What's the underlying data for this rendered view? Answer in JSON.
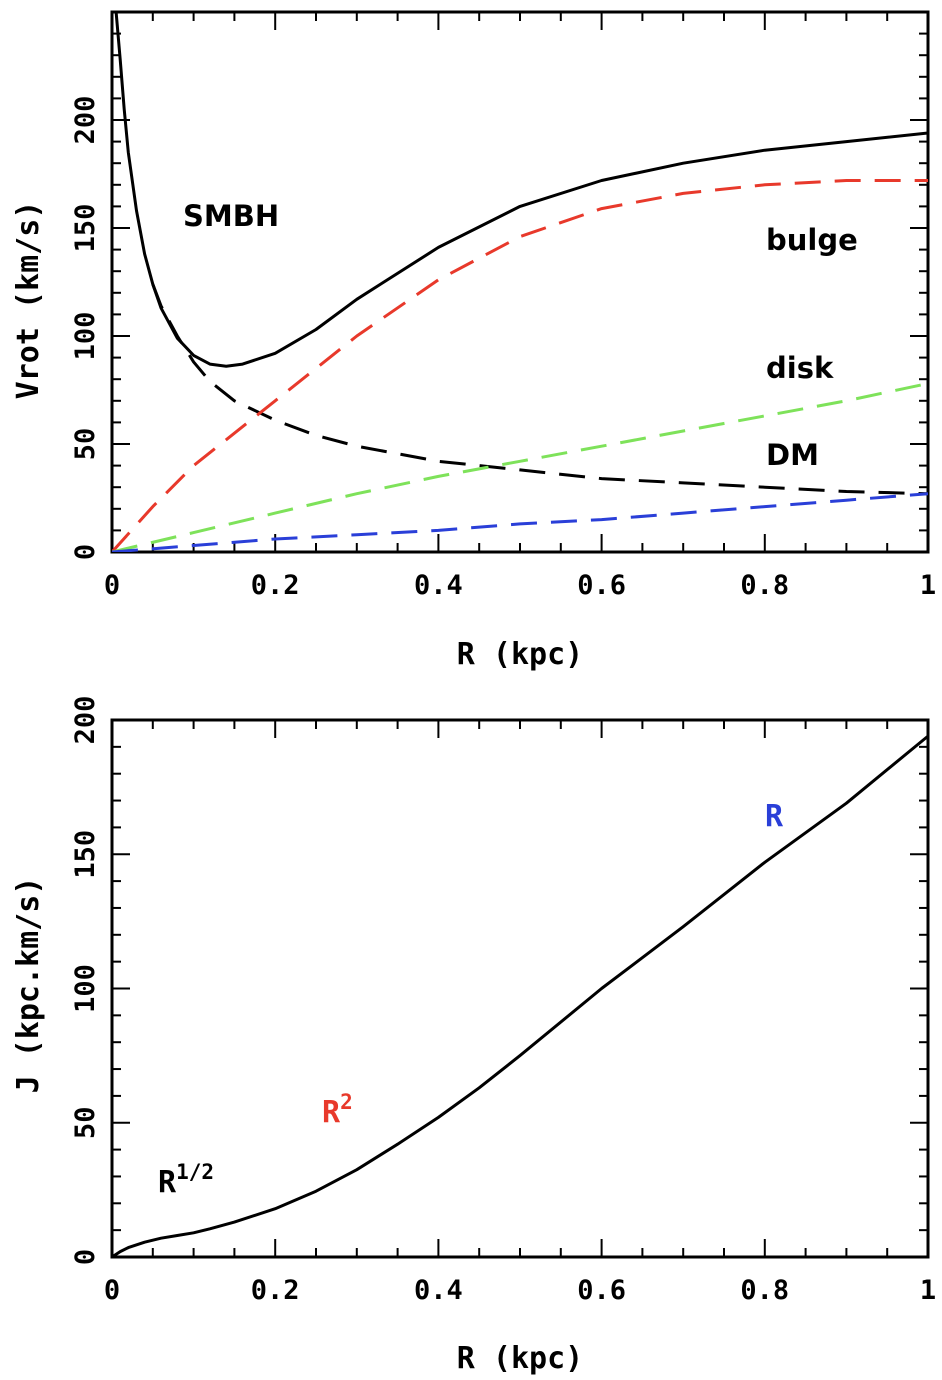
{
  "chart_data": [
    {
      "type": "line",
      "xlabel": "R (kpc)",
      "ylabel": "Vrot (km/s)",
      "xlim": [
        0,
        1
      ],
      "ylim": [
        0,
        250
      ],
      "xticks": [
        "0",
        "0.2",
        "0.4",
        "0.6",
        "0.8",
        "1"
      ],
      "yticks": [
        "0",
        "50",
        "100",
        "150",
        "200"
      ],
      "annotations": [
        {
          "text": "SMBH",
          "color": "#000000"
        },
        {
          "text": "bulge",
          "color": "#e8392b"
        },
        {
          "text": "disk",
          "color": "#7ee25a"
        },
        {
          "text": "DM",
          "color": "#2a3fd8"
        }
      ],
      "series": [
        {
          "style": "solid",
          "color": "#000000",
          "x": [
            0.005,
            0.01,
            0.015,
            0.02,
            0.03,
            0.04,
            0.05,
            0.06,
            0.08,
            0.1,
            0.12,
            0.14,
            0.16,
            0.2,
            0.25,
            0.3,
            0.4,
            0.5,
            0.6,
            0.7,
            0.8,
            0.9,
            1.0
          ],
          "y": [
            250,
            228,
            205,
            185,
            158,
            138,
            124,
            113,
            99,
            91,
            87,
            86,
            87,
            92,
            103,
            117,
            141,
            160,
            172,
            180,
            186,
            190,
            194
          ]
        },
        {
          "style": "dashed",
          "color": "#000000",
          "x": [
            0.05,
            0.06,
            0.08,
            0.1,
            0.12,
            0.15,
            0.2,
            0.25,
            0.3,
            0.4,
            0.5,
            0.6,
            0.7,
            0.8,
            0.9,
            1.0
          ],
          "y": [
            124,
            114,
            100,
            88,
            79,
            70,
            61,
            54,
            49,
            42,
            38,
            34,
            32,
            30,
            28,
            27
          ]
        },
        {
          "style": "dashed",
          "color": "#e8392b",
          "x": [
            0.0,
            0.05,
            0.1,
            0.15,
            0.2,
            0.25,
            0.3,
            0.4,
            0.5,
            0.6,
            0.7,
            0.8,
            0.9,
            1.0
          ],
          "y": [
            0,
            21,
            40,
            55,
            70,
            85,
            100,
            126,
            146,
            159,
            166,
            170,
            172,
            172
          ]
        },
        {
          "style": "dashed",
          "color": "#7ee25a",
          "x": [
            0.0,
            0.1,
            0.2,
            0.3,
            0.4,
            0.5,
            0.6,
            0.7,
            0.8,
            0.9,
            1.0
          ],
          "y": [
            0,
            9,
            18,
            27,
            35,
            42,
            49,
            56,
            63,
            70,
            78
          ]
        },
        {
          "style": "dashed",
          "color": "#2a3fd8",
          "x": [
            0.0,
            0.1,
            0.2,
            0.3,
            0.4,
            0.5,
            0.6,
            0.7,
            0.8,
            0.9,
            1.0
          ],
          "y": [
            0,
            3,
            6,
            8,
            10,
            13,
            15,
            18,
            21,
            24,
            27
          ]
        }
      ]
    },
    {
      "type": "line",
      "xlabel": "R (kpc)",
      "ylabel": "J (kpc.km/s)",
      "xlim": [
        0,
        1
      ],
      "ylim": [
        0,
        200
      ],
      "xticks": [
        "0",
        "0.2",
        "0.4",
        "0.6",
        "0.8",
        "1"
      ],
      "yticks": [
        "0",
        "50",
        "100",
        "150",
        "200"
      ],
      "annotations": [
        {
          "text": "R",
          "sup": "1/2",
          "color": "#000000"
        },
        {
          "text": "R",
          "sup": "2",
          "color": "#e8392b"
        },
        {
          "text": "R",
          "sup": "",
          "color": "#2a3fd8"
        }
      ],
      "series": [
        {
          "style": "solid",
          "color": "#000000",
          "x": [
            0.0,
            0.01,
            0.02,
            0.04,
            0.06,
            0.08,
            0.1,
            0.12,
            0.15,
            0.2,
            0.25,
            0.3,
            0.35,
            0.4,
            0.45,
            0.5,
            0.6,
            0.7,
            0.8,
            0.9,
            1.0
          ],
          "y": [
            0,
            2,
            3.5,
            5.5,
            7,
            8,
            9,
            10.5,
            13,
            18,
            24.5,
            32.5,
            42,
            52,
            63,
            75,
            100,
            123,
            147,
            169,
            194
          ]
        }
      ]
    }
  ]
}
